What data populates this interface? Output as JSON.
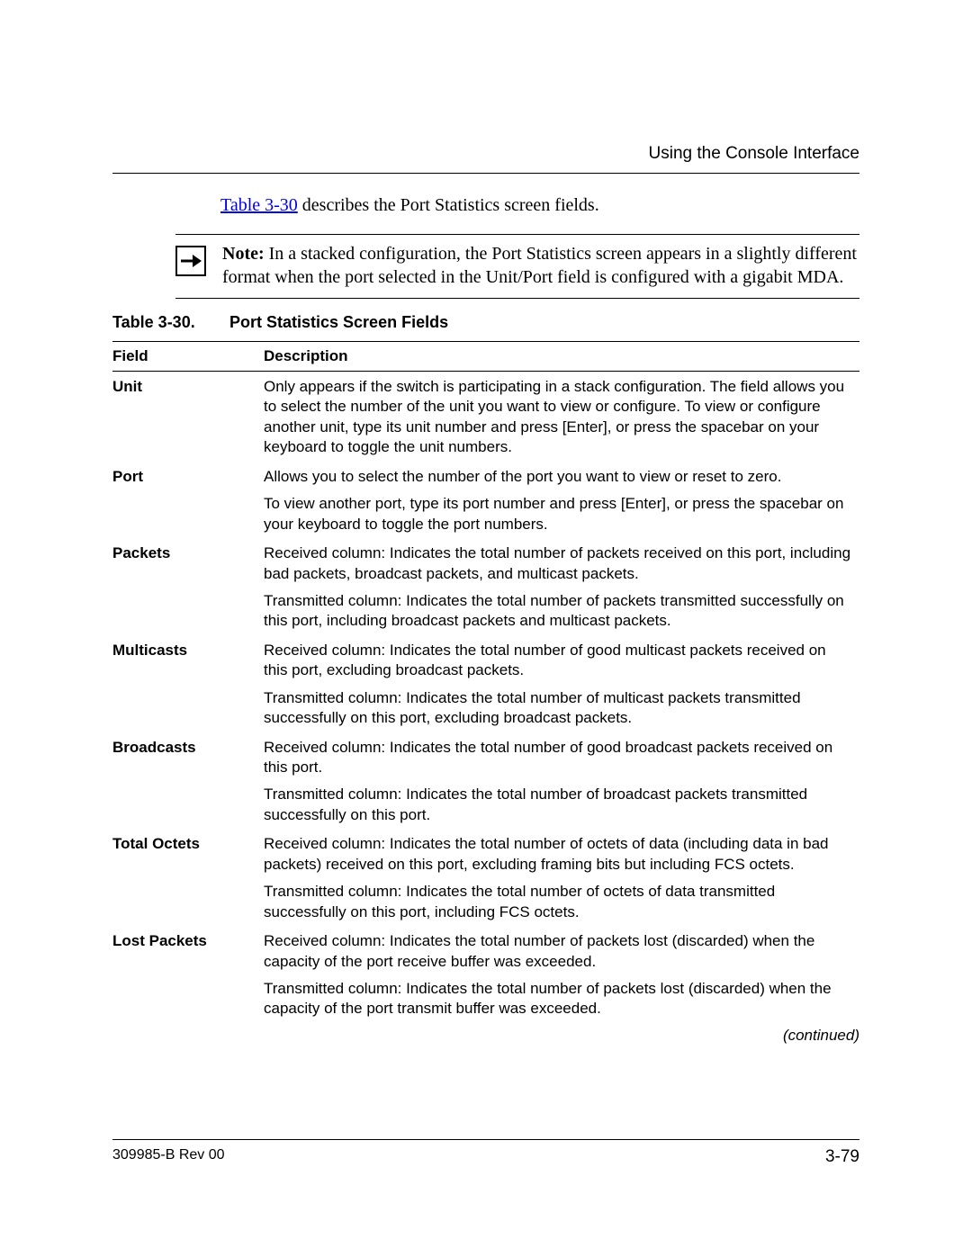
{
  "header": {
    "running_title": "Using the Console Interface"
  },
  "intro": {
    "link_text": "Table 3-30",
    "rest": " describes the Port Statistics screen fields."
  },
  "note": {
    "label": "Note:",
    "text": " In a stacked configuration, the Port Statistics screen appears in a slightly different format when the port selected in the Unit/Port field is configured with a gigabit MDA."
  },
  "table": {
    "caption_number": "Table 3-30.",
    "caption_title": "Port Statistics Screen Fields",
    "columns": [
      "Field",
      "Description"
    ],
    "rows": [
      {
        "field": "Unit",
        "paras": [
          "Only appears if the switch is participating in a stack configuration. The field allows you to select the number of the unit you want to view or configure. To view or configure another unit, type its unit number and press [Enter], or press the spacebar on your keyboard to toggle the unit numbers."
        ]
      },
      {
        "field": "Port",
        "paras": [
          "Allows you to select the number of the port you want to view or reset to zero.",
          "To view another port, type its port number and press [Enter], or press the spacebar on your keyboard to toggle the port numbers."
        ]
      },
      {
        "field": "Packets",
        "paras": [
          "Received column: Indicates the total number of packets received on this port, including bad packets, broadcast packets, and multicast packets.",
          "Transmitted column: Indicates the total number of packets transmitted successfully on this port, including broadcast packets and multicast packets."
        ]
      },
      {
        "field": "Multicasts",
        "paras": [
          "Received column: Indicates the total number of good multicast packets received on this port, excluding broadcast packets.",
          "Transmitted column: Indicates the total number of multicast packets transmitted successfully on this port, excluding broadcast packets."
        ]
      },
      {
        "field": "Broadcasts",
        "paras": [
          "Received column: Indicates the total number of good broadcast packets received on this port.",
          "Transmitted column: Indicates the total number of broadcast packets transmitted successfully on this port."
        ]
      },
      {
        "field": "Total Octets",
        "paras": [
          "Received column: Indicates the total number of octets of data (including data in bad packets) received on this port, excluding framing bits but including FCS octets.",
          "Transmitted column: Indicates the total number of octets of data transmitted successfully on this port, including FCS octets."
        ]
      },
      {
        "field": "Lost Packets",
        "paras": [
          "Received column: Indicates the total number of packets lost (discarded) when the capacity of the port receive buffer was exceeded.",
          "Transmitted column: Indicates the total number of packets lost (discarded) when the capacity of the port transmit buffer was exceeded."
        ]
      }
    ],
    "continued": "(continued)"
  },
  "footer": {
    "doc_id": "309985-B Rev 00",
    "page_number": "3-79"
  },
  "colors": {
    "link": "#0000ee",
    "text": "#000000",
    "rule": "#000000",
    "background": "#ffffff"
  }
}
